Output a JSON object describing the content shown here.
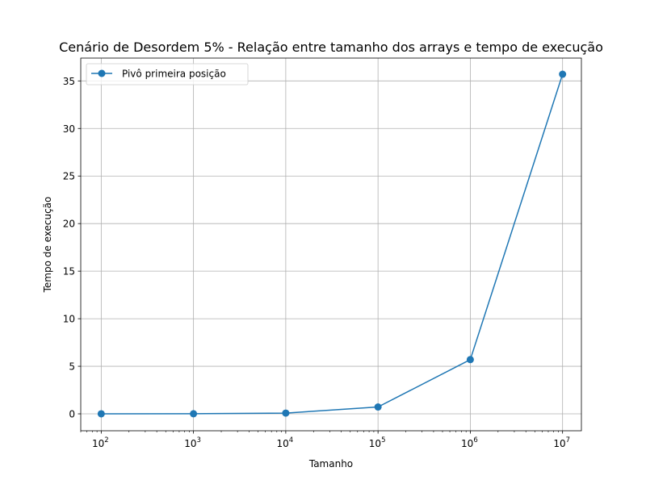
{
  "chart_data": {
    "type": "line",
    "title": "Cenário de Desordem 5% - Relação entre tamanho dos arrays e tempo de execução",
    "xlabel": "Tamanho",
    "ylabel": "Tempo de execução",
    "x_scale": "log",
    "x_ticks": [
      {
        "value": 100,
        "base": "10",
        "exp": "2"
      },
      {
        "value": 1000,
        "base": "10",
        "exp": "3"
      },
      {
        "value": 10000,
        "base": "10",
        "exp": "4"
      },
      {
        "value": 100000,
        "base": "10",
        "exp": "5"
      },
      {
        "value": 1000000,
        "base": "10",
        "exp": "6"
      },
      {
        "value": 10000000,
        "base": "10",
        "exp": "7"
      }
    ],
    "y_ticks": [
      "0",
      "5",
      "10",
      "15",
      "20",
      "25",
      "30",
      "35"
    ],
    "xlim": [
      60,
      16000000
    ],
    "ylim": [
      -1.78,
      37.4
    ],
    "grid": true,
    "legend": "upper-left",
    "x": [
      100,
      1000,
      10000,
      100000,
      1000000,
      10000000
    ],
    "series": [
      {
        "name": "Pivô primeira posição",
        "color": "#1f77b4",
        "marker": "circle",
        "values": [
          0.003,
          0.01,
          0.08,
          0.72,
          5.7,
          35.7
        ]
      }
    ]
  }
}
